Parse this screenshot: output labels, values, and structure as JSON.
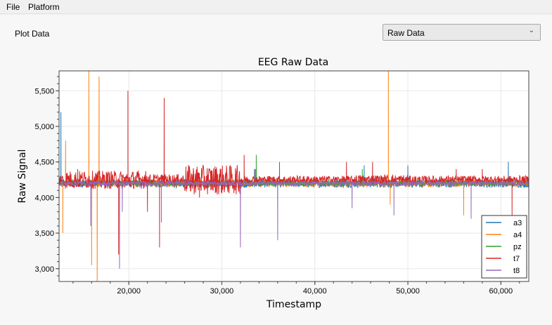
{
  "menu": {
    "file": "File",
    "platform": "Platform"
  },
  "controls": {
    "plot_label": "Plot Data",
    "plot_select_value": "Raw Data"
  },
  "chart_data": {
    "type": "line",
    "title": "EEG Raw Data",
    "xlabel": "Timestamp",
    "ylabel": "Raw Signal",
    "xlim": [
      12500,
      63000
    ],
    "ylim": [
      2820,
      5780
    ],
    "xticks": [
      20000,
      30000,
      40000,
      50000,
      60000
    ],
    "xtick_labels": [
      "20,000",
      "30,000",
      "40,000",
      "50,000",
      "60,000"
    ],
    "yticks": [
      3000,
      3500,
      4000,
      4500,
      5000,
      5500
    ],
    "ytick_labels": [
      "3,000",
      "3,500",
      "4,000",
      "4,500",
      "5,000",
      "5,500"
    ],
    "grid": true,
    "legend_position": "bottom-right",
    "series": [
      {
        "name": "a3",
        "color": "#1f77b4",
        "baseline": 4200,
        "noise": 60,
        "spikes": [
          [
            12700,
            5200
          ],
          [
            33500,
            4400
          ],
          [
            36200,
            4500
          ],
          [
            45300,
            4450
          ],
          [
            50000,
            4450
          ],
          [
            60800,
            4500
          ]
        ]
      },
      {
        "name": "a4",
        "color": "#ff7f0e",
        "baseline": 4200,
        "noise": 50,
        "spikes": [
          [
            12900,
            3500
          ],
          [
            13200,
            4800
          ],
          [
            15700,
            5780
          ],
          [
            16000,
            3050
          ],
          [
            16600,
            2820
          ],
          [
            16800,
            5700
          ],
          [
            47900,
            5780
          ],
          [
            48100,
            3900
          ],
          [
            56000,
            3750
          ]
        ]
      },
      {
        "name": "pz",
        "color": "#2ca02c",
        "baseline": 4200,
        "noise": 40,
        "spikes": [
          [
            33700,
            4600
          ],
          [
            45100,
            4400
          ]
        ]
      },
      {
        "name": "t7",
        "color": "#d62728",
        "baseline": 4250,
        "noise": 80,
        "spikes": [
          [
            14500,
            4400
          ],
          [
            18900,
            3200
          ],
          [
            19900,
            5500
          ],
          [
            22000,
            3800
          ],
          [
            23300,
            3300
          ],
          [
            23800,
            5400
          ],
          [
            27600,
            4000
          ],
          [
            32400,
            4600
          ],
          [
            33600,
            4400
          ],
          [
            43400,
            4500
          ],
          [
            46200,
            4500
          ],
          [
            55200,
            4400
          ],
          [
            58000,
            4400
          ],
          [
            61200,
            3750
          ]
        ]
      },
      {
        "name": "t8",
        "color": "#9467bd",
        "baseline": 4200,
        "noise": 30,
        "spikes": [
          [
            15900,
            3600
          ],
          [
            19000,
            3000
          ],
          [
            19300,
            3800
          ],
          [
            23500,
            3650
          ],
          [
            32000,
            3300
          ],
          [
            36000,
            3400
          ],
          [
            44000,
            3850
          ],
          [
            48500,
            3750
          ],
          [
            56800,
            3700
          ]
        ]
      }
    ]
  }
}
